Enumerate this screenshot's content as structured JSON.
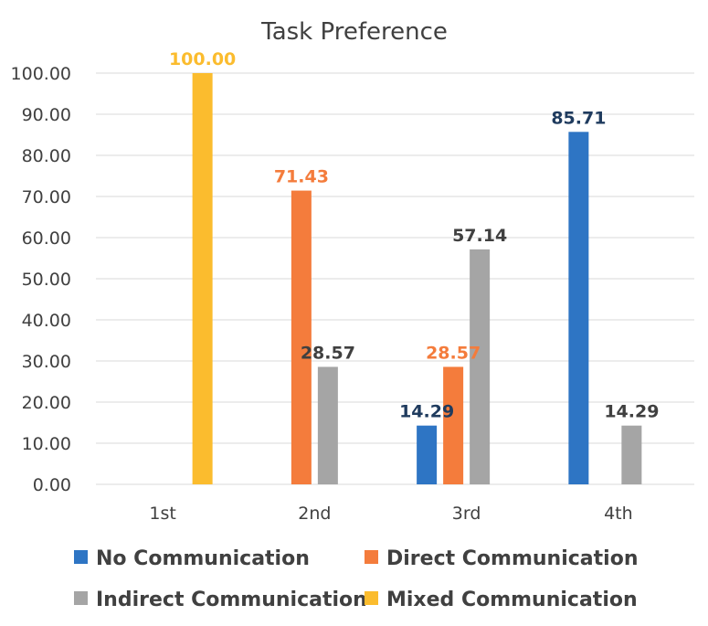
{
  "chart_data": {
    "type": "bar",
    "title": "Task Preference",
    "xlabel": "",
    "ylabel": "",
    "categories": [
      "1st",
      "2nd",
      "3rd",
      "4th"
    ],
    "ylim": [
      0,
      100
    ],
    "ytick_step": 10,
    "ytick_labels": [
      "0.00",
      "10.00",
      "20.00",
      "30.00",
      "40.00",
      "50.00",
      "60.00",
      "70.00",
      "80.00",
      "90.00",
      "100.00"
    ],
    "grid": true,
    "legend_position": "bottom",
    "series": [
      {
        "name": "No Communication",
        "color": "#2e75c4",
        "label_color": "#1f3b5e",
        "values": [
          null,
          null,
          14.29,
          85.71
        ],
        "labels": [
          "",
          "",
          "14.29",
          "85.71"
        ]
      },
      {
        "name": "Direct Communication",
        "color": "#f47c3c",
        "label_color": "#f47c3c",
        "values": [
          null,
          71.43,
          28.57,
          null
        ],
        "labels": [
          "",
          "71.43",
          "28.57",
          ""
        ]
      },
      {
        "name": "Indirect Communication",
        "color": "#a5a5a5",
        "label_color": "#404040",
        "values": [
          null,
          28.57,
          57.14,
          14.29
        ],
        "labels": [
          "",
          "28.57",
          "57.14",
          "14.29"
        ]
      },
      {
        "name": "Mixed Communication",
        "color": "#fbbc2e",
        "label_color": "#fbbc2e",
        "values": [
          100.0,
          null,
          null,
          null
        ],
        "labels": [
          "100.00",
          "",
          "",
          ""
        ]
      }
    ]
  }
}
